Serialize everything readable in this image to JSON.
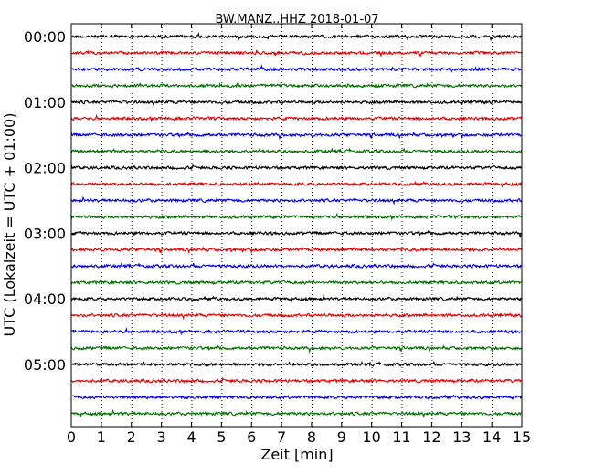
{
  "chart_data": {
    "type": "line",
    "title": "BW.MANZ..HHZ 2018-01-07",
    "xlabel": "Zeit  [min]",
    "ylabel": "UTC (Lokalzeit = UTC + 01:00)",
    "xlim": [
      0,
      15
    ],
    "x_ticks": [
      "0",
      "1",
      "2",
      "3",
      "4",
      "5",
      "6",
      "7",
      "8",
      "9",
      "10",
      "11",
      "12",
      "13",
      "14",
      "15"
    ],
    "y_ticks": [
      "00:00",
      "01:00",
      "02:00",
      "03:00",
      "04:00",
      "05:00"
    ],
    "traces_per_hour": 4,
    "trace_count": 24,
    "trace_minutes": 15,
    "color_cycle": [
      "#000000",
      "#e00000",
      "#0000e0",
      "#007000"
    ],
    "grid": "vertical dotted lines at each minute",
    "legend": "none"
  }
}
